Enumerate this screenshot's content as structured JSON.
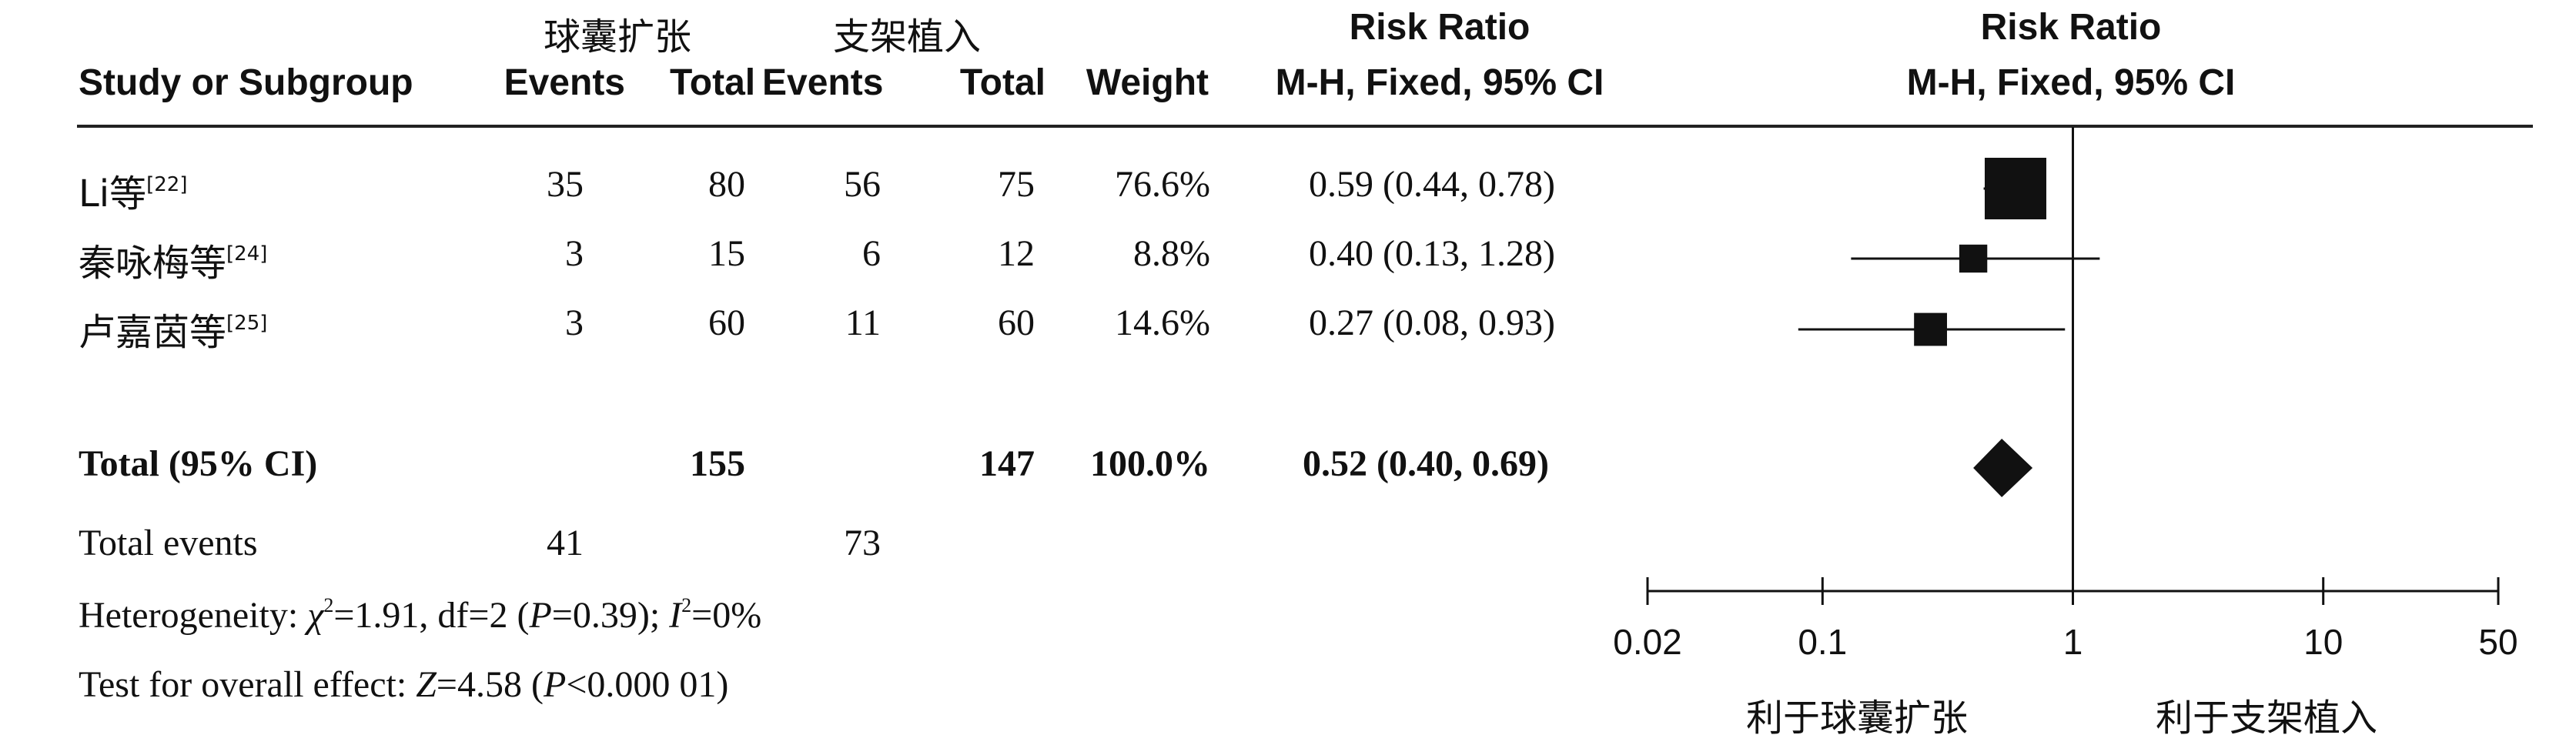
{
  "header": {
    "group1_name": "球囊扩张",
    "group2_name": "支架植入",
    "col_study": "Study or Subgroup",
    "col_g1_events": "Events",
    "col_g1_total": "Total",
    "col_g2_events": "Events",
    "col_g2_total": "Total",
    "col_weight": "Weight",
    "col_rr_title": "Risk Ratio",
    "col_rr_method": "M-H, Fixed, 95% CI",
    "plot_title": "Risk Ratio",
    "plot_method": "M-H, Fixed, 95% CI"
  },
  "studies": [
    {
      "name": "Li等",
      "ref": "[22]",
      "e1": "35",
      "t1": "80",
      "e2": "56",
      "t2": "75",
      "weight": "76.6%",
      "ci_text": "0.59 (0.44, 0.78)"
    },
    {
      "name": "秦咏梅等",
      "ref": "[24]",
      "e1": "3",
      "t1": "15",
      "e2": "6",
      "t2": "12",
      "weight": "8.8%",
      "ci_text": "0.40 (0.13, 1.28)"
    },
    {
      "name": "卢嘉茵等",
      "ref": "[25]",
      "e1": "3",
      "t1": "60",
      "e2": "11",
      "t2": "60",
      "weight": "14.6%",
      "ci_text": "0.27 (0.08, 0.93)"
    }
  ],
  "total": {
    "label": "Total (95% CI)",
    "t1": "155",
    "t2": "147",
    "weight": "100.0%",
    "ci_text": "0.52 (0.40, 0.69)"
  },
  "total_events": {
    "label": "Total events",
    "e1": "41",
    "e2": "73"
  },
  "heterogeneity": {
    "prefix": "Heterogeneity: ",
    "chi_symbol": "χ",
    "chi_value": "=1.91, df=2 (",
    "p_symbol": "P",
    "p_value": "=0.39); ",
    "i_symbol": "I",
    "i_value": "=0%"
  },
  "overall_effect": {
    "prefix": "Test for overall effect: ",
    "z_symbol": "Z",
    "z_value": "=4.58 (",
    "p_symbol": "P",
    "p_value": "<0.000 01)"
  },
  "axis": {
    "favours_left": "利于球囊扩张",
    "favours_right": "利于支架植入"
  },
  "chart_data": {
    "type": "scatter",
    "subtype": "forest_plot",
    "title": "Risk Ratio",
    "subtitle": "M-H, Fixed, 95% CI",
    "xscale": "log",
    "xlim": [
      0.02,
      50
    ],
    "xticks": [
      0.02,
      0.1,
      1,
      10,
      50
    ],
    "xtick_labels": [
      "0.02",
      "0.1",
      "1",
      "10",
      "50"
    ],
    "reference_line": 1,
    "studies": [
      {
        "name": "Li等",
        "rr": 0.59,
        "lower": 0.44,
        "upper": 0.78,
        "weight": 76.6
      },
      {
        "name": "秦咏梅等",
        "rr": 0.4,
        "lower": 0.13,
        "upper": 1.28,
        "weight": 8.8
      },
      {
        "name": "卢嘉茵等",
        "rr": 0.27,
        "lower": 0.08,
        "upper": 0.93,
        "weight": 14.6
      }
    ],
    "pooled": {
      "name": "Total (95% CI)",
      "rr": 0.52,
      "lower": 0.4,
      "upper": 0.69,
      "weight": 100.0
    },
    "grid": false
  }
}
